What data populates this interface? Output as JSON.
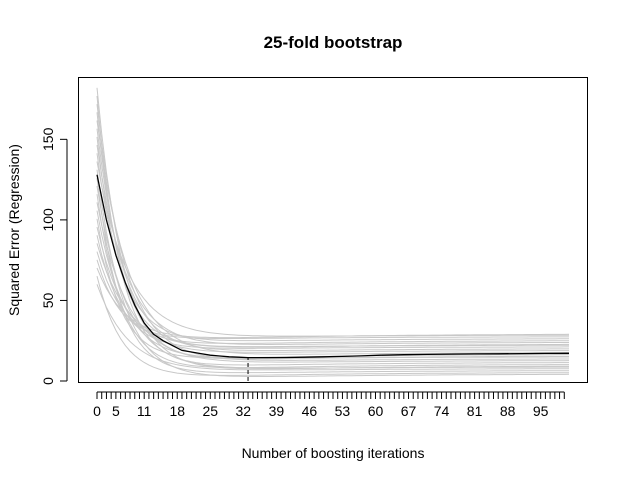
{
  "chart_data": {
    "type": "line",
    "title": "25-fold bootstrap",
    "xlabel": "Number of boosting iterations",
    "ylabel": "Squared Error (Regression)",
    "x_range": [
      0,
      100
    ],
    "ylim": [
      0,
      180
    ],
    "x_tick_labels": [
      "0",
      "5",
      "11",
      "18",
      "25",
      "32",
      "39",
      "46",
      "53",
      "60",
      "67",
      "74",
      "81",
      "88",
      "95"
    ],
    "x_tick_label_positions": [
      0,
      4,
      10,
      17,
      24,
      31,
      38,
      45,
      52,
      59,
      66,
      73,
      80,
      87,
      94
    ],
    "y_ticks": [
      0,
      50,
      100,
      150
    ],
    "optimal_iteration": 32,
    "optimal_error": 14.5,
    "grid": false,
    "legend": "none",
    "mean_series": {
      "x": [
        0,
        2,
        4,
        6,
        8,
        10,
        12,
        14,
        16,
        18,
        20,
        22,
        24,
        26,
        28,
        30,
        32,
        36,
        40,
        44,
        48,
        52,
        56,
        60,
        65,
        70,
        75,
        80,
        85,
        90,
        95,
        100
      ],
      "values": [
        128,
        100,
        78,
        61,
        47,
        36,
        29,
        25,
        22,
        19,
        18,
        17,
        16,
        15.5,
        15,
        14.8,
        14.5,
        14.5,
        14.6,
        14.8,
        15,
        15.3,
        15.6,
        16,
        16.3,
        16.5,
        16.7,
        16.8,
        16.9,
        17,
        17.1,
        17.2
      ]
    },
    "series_summary": {
      "count": 25,
      "start_range": [
        60,
        182
      ],
      "end_range": [
        5,
        30
      ]
    },
    "colors": {
      "bootstrap": "#c8c8c8",
      "mean": "#000000"
    }
  }
}
